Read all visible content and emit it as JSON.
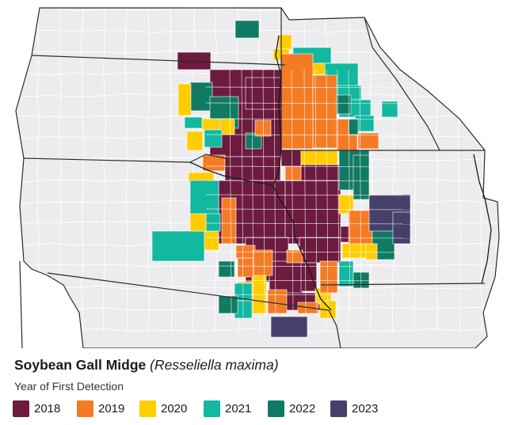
{
  "title": {
    "common_name": "Soybean Gall Midge",
    "scientific_name": "(Resseliella maxima)"
  },
  "subtitle": "Year of First Detection",
  "colors": {
    "map_background": "#ececef",
    "county_border": "#ffffff",
    "state_border": "#2b2b2b"
  },
  "legend": [
    {
      "year": "2018",
      "color": "#6d1a3f"
    },
    {
      "year": "2019",
      "color": "#f47b26"
    },
    {
      "year": "2020",
      "color": "#ffcd00"
    },
    {
      "year": "2021",
      "color": "#12b8a0"
    },
    {
      "year": "2022",
      "color": "#117a62"
    },
    {
      "year": "2023",
      "color": "#45406a"
    }
  ]
}
